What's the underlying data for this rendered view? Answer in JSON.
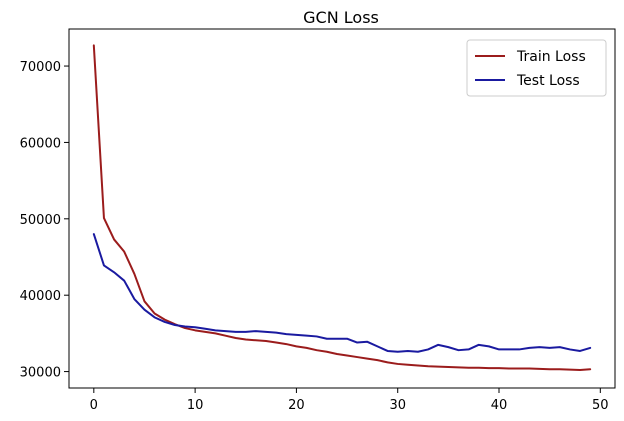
{
  "chart_data": {
    "type": "line",
    "title": "GCN Loss",
    "xlabel": "",
    "ylabel": "",
    "xlim": [
      -2.45,
      51.45
    ],
    "ylim": [
      27850,
      74850
    ],
    "xticks": [
      0,
      10,
      20,
      30,
      40,
      50
    ],
    "yticks": [
      30000,
      40000,
      50000,
      60000,
      70000
    ],
    "grid": false,
    "legend_position": "top-right",
    "x": [
      0,
      1,
      2,
      3,
      4,
      5,
      6,
      7,
      8,
      9,
      10,
      11,
      12,
      13,
      14,
      15,
      16,
      17,
      18,
      19,
      20,
      21,
      22,
      23,
      24,
      25,
      26,
      27,
      28,
      29,
      30,
      31,
      32,
      33,
      34,
      35,
      36,
      37,
      38,
      39,
      40,
      41,
      42,
      43,
      44,
      45,
      46,
      47,
      48,
      49
    ],
    "series": [
      {
        "name": "Train Loss",
        "color": "#9b1c1c",
        "values": [
          72700,
          50100,
          47300,
          45700,
          42800,
          39200,
          37600,
          36800,
          36200,
          35700,
          35400,
          35200,
          35000,
          34700,
          34400,
          34200,
          34100,
          34000,
          33800,
          33600,
          33300,
          33100,
          32800,
          32600,
          32300,
          32100,
          31900,
          31700,
          31500,
          31200,
          31000,
          30900,
          30800,
          30700,
          30650,
          30600,
          30550,
          30500,
          30500,
          30450,
          30450,
          30400,
          30400,
          30400,
          30350,
          30300,
          30300,
          30250,
          30200,
          30300
        ]
      },
      {
        "name": "Test Loss",
        "color": "#1a1aa0",
        "values": [
          48000,
          43900,
          43000,
          41900,
          39500,
          38100,
          37100,
          36500,
          36100,
          35900,
          35800,
          35600,
          35400,
          35300,
          35200,
          35200,
          35300,
          35200,
          35100,
          34900,
          34800,
          34700,
          34600,
          34300,
          34300,
          34300,
          33800,
          33900,
          33300,
          32700,
          32600,
          32700,
          32600,
          32900,
          33500,
          33200,
          32800,
          32900,
          33500,
          33300,
          32900,
          32900,
          32900,
          33100,
          33200,
          33100,
          33200,
          32900,
          32700,
          33100
        ]
      }
    ]
  }
}
